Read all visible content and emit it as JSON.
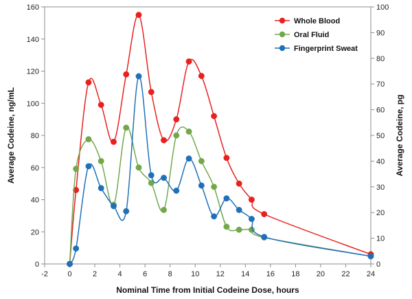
{
  "chart_data": {
    "type": "line",
    "title": "",
    "xlabel": "Nominal Time from Initial Codeine Dose, hours",
    "ylabel": "Average Codeine, ng/mL",
    "y2label": "Average Codeine, pg",
    "xlim": [
      -2,
      24
    ],
    "ylim": [
      0,
      160
    ],
    "y2lim": [
      0,
      100
    ],
    "xticks": [
      -2,
      0,
      2,
      4,
      6,
      8,
      10,
      12,
      14,
      16,
      18,
      20,
      22,
      24
    ],
    "yticks": [
      0,
      20,
      40,
      60,
      80,
      100,
      120,
      140,
      160
    ],
    "y2ticks": [
      0,
      10,
      20,
      30,
      40,
      50,
      60,
      70,
      80,
      90,
      100
    ],
    "grid": false,
    "legend_position": "top-right",
    "series": [
      {
        "name": "Whole Blood",
        "axis": "left",
        "color": "#e8201e",
        "x": [
          0,
          0.5,
          1.5,
          2.5,
          3.5,
          4.5,
          5.5,
          6.5,
          7.5,
          8.5,
          9.5,
          10.5,
          11.5,
          12.5,
          13.5,
          14.5,
          15.5,
          24
        ],
        "y": [
          0,
          46,
          113,
          99,
          76,
          118,
          155,
          107,
          77,
          90,
          126,
          117,
          92,
          66,
          50,
          40,
          31,
          6
        ]
      },
      {
        "name": "Oral Fluid",
        "axis": "right",
        "color": "#72a84a",
        "x": [
          0,
          0.5,
          1.5,
          2.5,
          3.5,
          4.5,
          5.5,
          6.5,
          7.5,
          8.5,
          9.5,
          10.5,
          11.5,
          12.5,
          13.5,
          14.5,
          15.5,
          24
        ],
        "y": [
          0,
          37,
          48.5,
          40,
          23,
          53,
          37.5,
          31.5,
          21,
          50,
          51.5,
          40,
          30,
          14.5,
          13.3,
          13.3,
          10.3,
          3
        ]
      },
      {
        "name": "Fingerprint Sweat",
        "axis": "right",
        "color": "#1f70b8",
        "x": [
          0,
          0.5,
          1.5,
          2.5,
          3.5,
          4.5,
          5.5,
          6.5,
          7.5,
          8.5,
          9.5,
          10.5,
          11.5,
          12.5,
          13.5,
          14.5,
          15.5,
          24
        ],
        "y": [
          0,
          6,
          38,
          29.5,
          22.5,
          20.5,
          73,
          34.5,
          33.5,
          28.5,
          41,
          30.5,
          18.5,
          25.5,
          21,
          17.5,
          10.5,
          3
        ]
      }
    ]
  }
}
